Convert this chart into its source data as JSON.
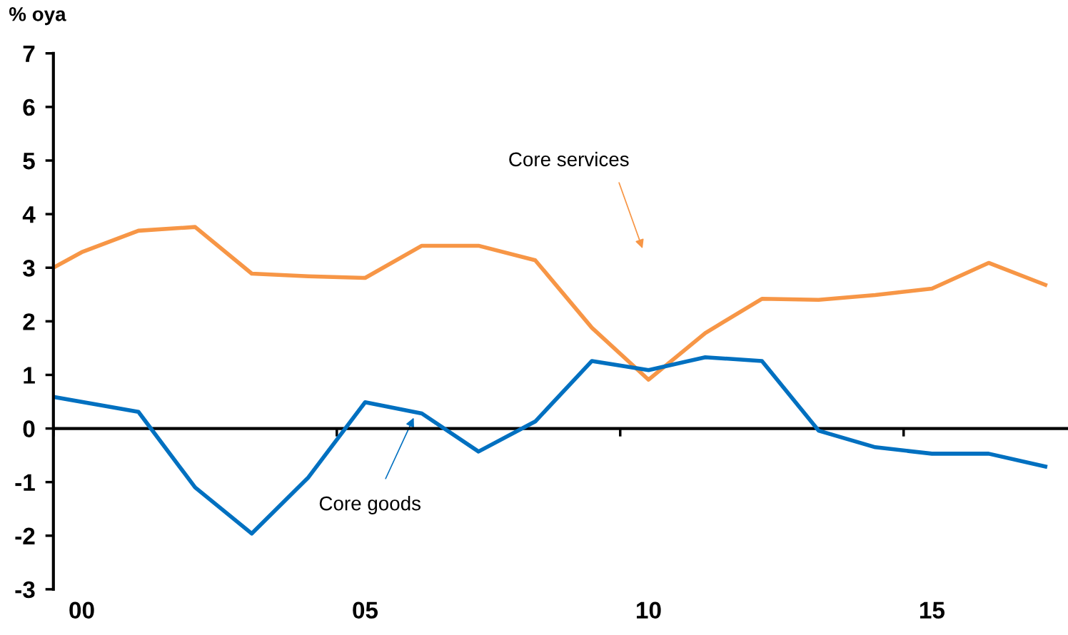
{
  "chart_data": {
    "type": "line",
    "ylabel": "% oya",
    "x": [
      1999.5,
      2000,
      2001,
      2002,
      2003,
      2004,
      2005,
      2006,
      2007,
      2008,
      2009,
      2010,
      2011,
      2012,
      2013,
      2014,
      2015,
      2016,
      2017
    ],
    "series": [
      {
        "name": "Core services",
        "color": "#f79646",
        "values": [
          3.0,
          3.29,
          3.69,
          3.76,
          2.89,
          2.84,
          2.81,
          3.41,
          3.41,
          3.14,
          1.88,
          0.91,
          1.78,
          2.42,
          2.4,
          2.49,
          2.61,
          3.09,
          2.68
        ]
      },
      {
        "name": "Core goods",
        "color": "#0070c0",
        "values": [
          0.59,
          null,
          0.31,
          -1.1,
          -1.96,
          -0.91,
          0.49,
          0.28,
          -0.43,
          0.13,
          1.26,
          1.09,
          1.33,
          1.26,
          -0.04,
          -0.35,
          -0.47,
          -0.47,
          -0.71
        ]
      }
    ],
    "xlim": [
      1999.5,
      2017.4
    ],
    "xticks": [
      {
        "value": 1999.5,
        "label": null
      },
      {
        "value": 2000,
        "label": "00"
      },
      {
        "value": 2004.5,
        "label": null
      },
      {
        "value": 2005,
        "label": "05"
      },
      {
        "value": 2009.5,
        "label": null
      },
      {
        "value": 2010,
        "label": "10"
      },
      {
        "value": 2014.5,
        "label": null
      },
      {
        "value": 2015,
        "label": "15"
      }
    ],
    "ylim": [
      -3,
      7
    ],
    "yticks": [
      -3,
      -2,
      -1,
      0,
      1,
      2,
      3,
      4,
      5,
      6,
      7
    ],
    "ref_lines": [
      {
        "axis": "y",
        "value": 0,
        "color": "#000000"
      }
    ],
    "grid": false,
    "legend": false,
    "marker": "none",
    "line_style": "solid"
  }
}
